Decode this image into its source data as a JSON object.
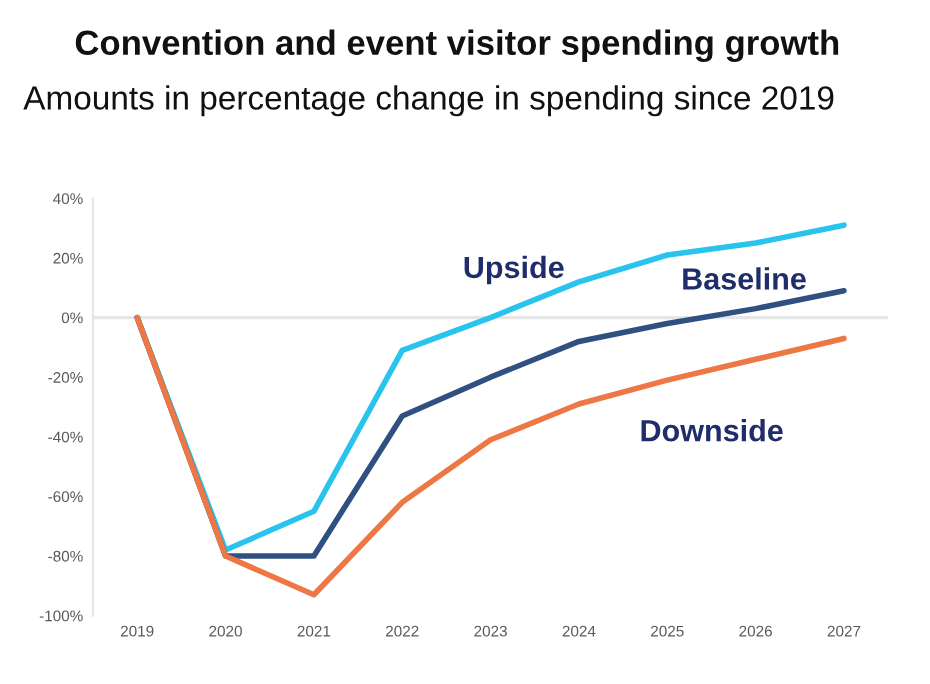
{
  "chart_data": {
    "type": "line",
    "title": "Convention and event visitor spending growth",
    "subtitle": "Amounts in percentage change in spending since 2019",
    "categories": [
      "2019",
      "2020",
      "2021",
      "2022",
      "2023",
      "2024",
      "2025",
      "2026",
      "2027"
    ],
    "series": [
      {
        "name": "Upside",
        "color": "#29c4ee",
        "values": [
          0,
          -78,
          -65,
          -11,
          0,
          12,
          21,
          25,
          31
        ]
      },
      {
        "name": "Baseline",
        "color": "#2f5080",
        "values": [
          0,
          -80,
          -80,
          -33,
          -20,
          -8,
          -2,
          3,
          9
        ]
      },
      {
        "name": "Downside",
        "color": "#ee7845",
        "values": [
          0,
          -80,
          -93,
          -62,
          -41,
          -29,
          -21,
          -14,
          -7
        ]
      }
    ],
    "ylim": [
      -100,
      40
    ],
    "yticks": [
      {
        "value": -100,
        "label": "-100%"
      },
      {
        "value": -80,
        "label": "-80%"
      },
      {
        "value": -60,
        "label": "-60%"
      },
      {
        "value": -40,
        "label": "-40%"
      },
      {
        "value": -20,
        "label": "-20%"
      },
      {
        "value": 0,
        "label": "0%"
      },
      {
        "value": 20,
        "label": "20%"
      },
      {
        "value": 40,
        "label": "40%"
      }
    ],
    "ref_lines": [
      {
        "axis": "y",
        "value": 0,
        "color": "#e6e6e6"
      }
    ],
    "grid": false,
    "legend": false,
    "marker": "none",
    "line_style": "solid"
  }
}
